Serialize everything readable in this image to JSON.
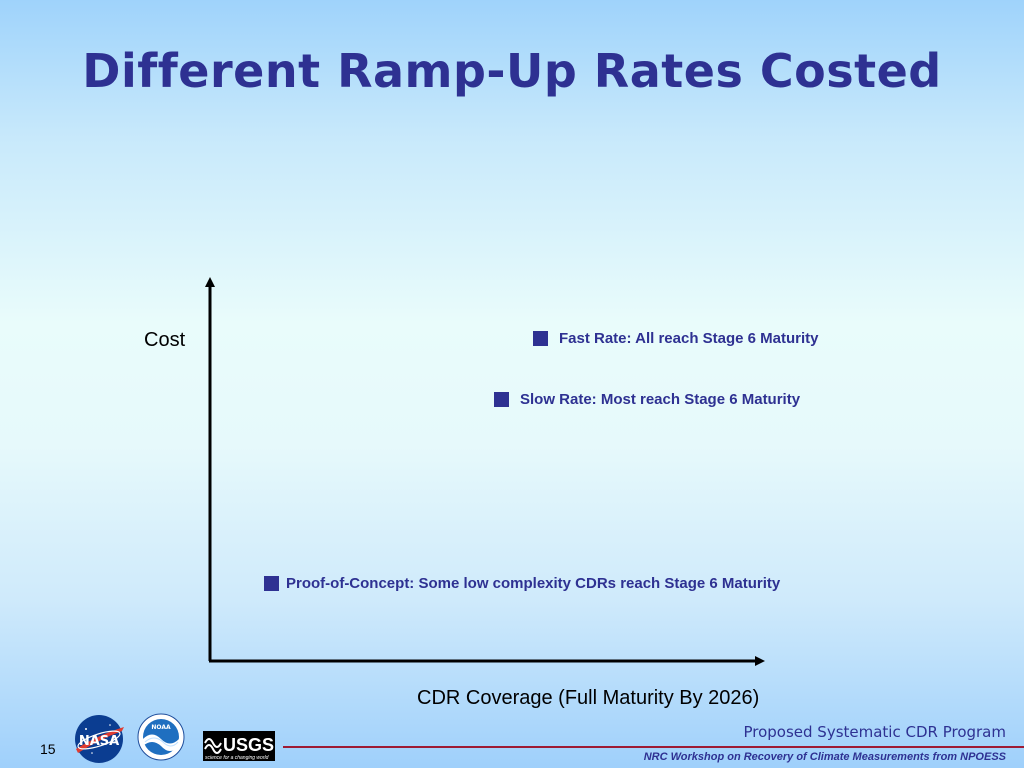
{
  "slide": {
    "title": "Different Ramp-Up Rates Costed",
    "page_number": "15"
  },
  "chart": {
    "y_axis_label": "Cost",
    "x_axis_label": "CDR Coverage (Full Maturity By 2026)",
    "legend": [
      {
        "id": "fast",
        "label": "Fast Rate:  All reach Stage 6 Maturity"
      },
      {
        "id": "slow",
        "label": "Slow Rate:  Most reach Stage 6 Maturity"
      },
      {
        "id": "poc",
        "label": "Proof-of-Concept: Some low complexity CDRs reach Stage 6 Maturity"
      }
    ]
  },
  "footer": {
    "program": "Proposed Systematic CDR Program",
    "workshop": "NRC Workshop on Recovery of Climate Measurements from NPOESS",
    "logos": [
      "NASA",
      "NOAA",
      "USGS"
    ],
    "usgs_tagline": "science for a changing world"
  },
  "colors": {
    "title": "#2e3192",
    "legend": "#2e3192",
    "footer_line": "#9e1b34"
  }
}
